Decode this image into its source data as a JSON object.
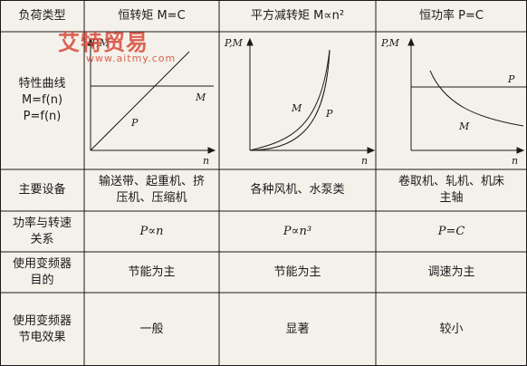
{
  "header": {
    "load_type": "负荷类型",
    "col1": "恒转矩 M=C",
    "col2": "平方减转矩 M∝n²",
    "col3": "恒功率 P=C"
  },
  "row_curve": {
    "label": "特性曲线 M=f(n) P=f(n)",
    "plot1": {
      "y_axis": "P,M",
      "x_axis": "n",
      "label_m": "M",
      "label_p": "P"
    },
    "plot2": {
      "y_axis": "P,M",
      "x_axis": "n",
      "label_m": "M",
      "label_p": "P"
    },
    "plot3": {
      "y_axis": "P,M",
      "x_axis": "n",
      "label_m": "M",
      "label_p": "P"
    }
  },
  "row_equipment": {
    "label": "主要设备",
    "col1": "输送带、起重机、挤压机、压缩机",
    "col2": "各种风机、水泵类",
    "col3": "卷取机、轧机、机床主轴"
  },
  "row_relation": {
    "label": "功率与转速关系",
    "col1": "P∝n",
    "col2": "P∝n³",
    "col3": "P=C"
  },
  "row_purpose": {
    "label": "使用变频器目的",
    "col1": "节能为主",
    "col2": "节能为主",
    "col3": "调速为主"
  },
  "row_effect": {
    "label": "使用变频器节电效果",
    "col1": "一般",
    "col2": "显著",
    "col3": "较小"
  },
  "watermark": {
    "name": "艾特贸易",
    "url": "www.aitmy.com"
  },
  "colors": {
    "line": "#1a1a1a",
    "background": "#f4f1ea",
    "watermark": "#d84a3a"
  }
}
